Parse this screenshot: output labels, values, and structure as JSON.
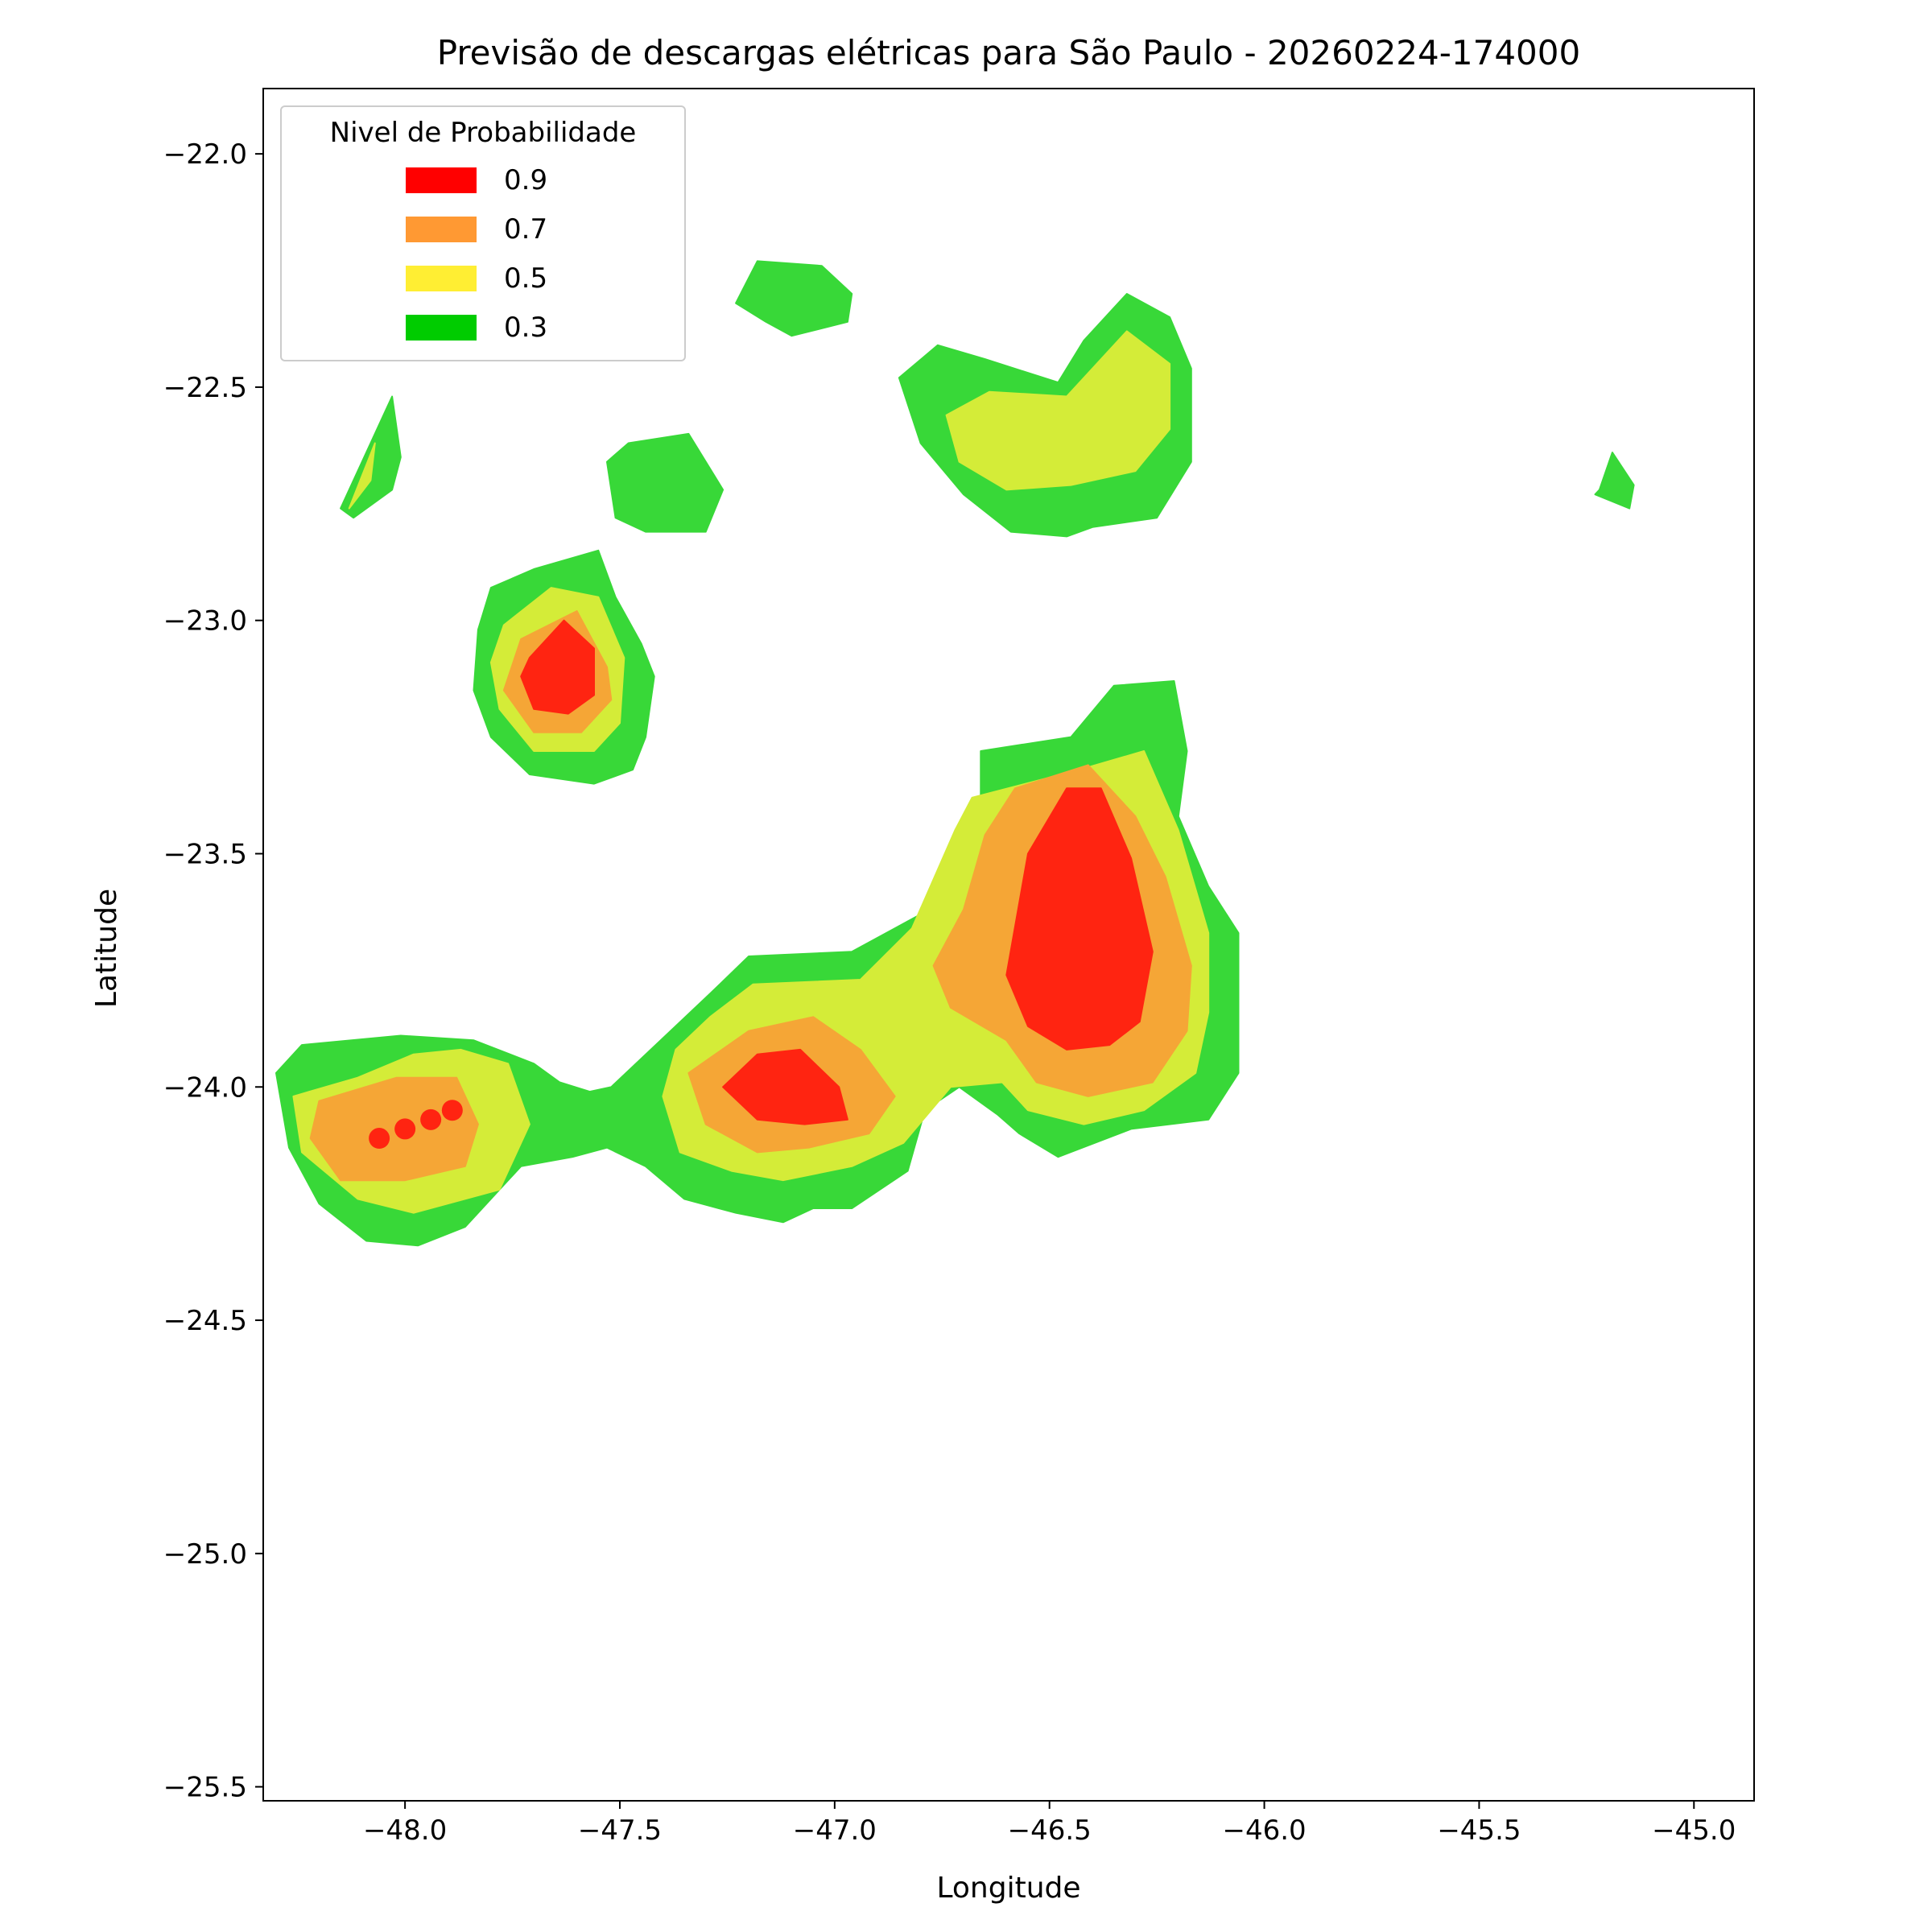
{
  "chart_data": {
    "type": "heatmap",
    "title": "Previsão de descargas elétricas para São Paulo - 20260224-174000",
    "xlabel": "Longitude",
    "ylabel": "Latitude",
    "xlim": [
      -48.33,
      -44.86
    ],
    "ylim": [
      -25.53,
      -21.86
    ],
    "xticks": [
      -48.0,
      -47.5,
      -47.0,
      -46.5,
      -46.0,
      -45.5,
      -45.0
    ],
    "yticks": [
      -22.0,
      -22.5,
      -23.0,
      -23.5,
      -24.0,
      -24.5,
      -25.0,
      -25.5
    ],
    "xtick_labels": [
      "−48.0",
      "−47.5",
      "−47.0",
      "−46.5",
      "−46.0",
      "−45.5",
      "−45.0"
    ],
    "ytick_labels": [
      "−22.0",
      "−22.5",
      "−23.0",
      "−23.5",
      "−24.0",
      "−24.5",
      "−25.0",
      "−25.5"
    ],
    "legend": {
      "title": "Nivel de Probabilidade",
      "placement": "upper-left",
      "entries": [
        {
          "label": "0.9",
          "color": "#ff0000"
        },
        {
          "label": "0.7",
          "color": "#ff9933"
        },
        {
          "label": "0.5",
          "color": "#ffee33"
        },
        {
          "label": "0.3",
          "color": "#00cc00"
        }
      ]
    },
    "level_colors": {
      "0.3": "#38d838",
      "0.5": "#d4ec38",
      "0.7": "#f5a636",
      "0.9": "#ff2411"
    },
    "contours": [
      {
        "level": 0.3,
        "polygons": [
          [
            [
              -47.52,
              -24.0
            ],
            [
              -47.29,
              -23.8
            ],
            [
              -47.2,
              -23.72
            ],
            [
              -46.96,
              -23.71
            ],
            [
              -46.86,
              -23.66
            ],
            [
              -46.78,
              -23.62
            ],
            [
              -46.73,
              -23.57
            ],
            [
              -46.72,
              -23.46
            ],
            [
              -46.66,
              -23.42
            ],
            [
              -46.66,
              -23.28
            ],
            [
              -46.45,
              -23.25
            ],
            [
              -46.35,
              -23.14
            ],
            [
              -46.21,
              -23.13
            ],
            [
              -46.18,
              -23.28
            ],
            [
              -46.2,
              -23.42
            ],
            [
              -46.13,
              -23.57
            ],
            [
              -46.06,
              -23.67
            ],
            [
              -46.06,
              -23.97
            ],
            [
              -46.13,
              -24.07
            ],
            [
              -46.31,
              -24.09
            ],
            [
              -46.48,
              -24.15
            ],
            [
              -46.57,
              -24.1
            ],
            [
              -46.62,
              -24.06
            ],
            [
              -46.71,
              -24.0
            ],
            [
              -46.79,
              -24.05
            ],
            [
              -46.83,
              -24.18
            ],
            [
              -46.96,
              -24.26
            ],
            [
              -47.05,
              -24.26
            ],
            [
              -47.12,
              -24.29
            ],
            [
              -47.23,
              -24.27
            ],
            [
              -47.35,
              -24.24
            ],
            [
              -47.44,
              -24.17
            ],
            [
              -47.53,
              -24.13
            ],
            [
              -47.61,
              -24.15
            ],
            [
              -47.73,
              -24.17
            ],
            [
              -47.86,
              -24.3
            ],
            [
              -47.97,
              -24.34
            ],
            [
              -48.09,
              -24.33
            ],
            [
              -48.2,
              -24.25
            ],
            [
              -48.27,
              -24.13
            ],
            [
              -48.3,
              -23.97
            ],
            [
              -48.24,
              -23.91
            ],
            [
              -48.01,
              -23.89
            ],
            [
              -47.84,
              -23.9
            ],
            [
              -47.7,
              -23.95
            ],
            [
              -47.64,
              -23.99
            ],
            [
              -47.57,
              -24.01
            ]
          ],
          [
            [
              -47.83,
              -23.02
            ],
            [
              -47.8,
              -22.93
            ],
            [
              -47.7,
              -22.89
            ],
            [
              -47.55,
              -22.85
            ],
            [
              -47.51,
              -22.95
            ],
            [
              -47.45,
              -23.05
            ],
            [
              -47.42,
              -23.12
            ],
            [
              -47.44,
              -23.25
            ],
            [
              -47.47,
              -23.32
            ],
            [
              -47.56,
              -23.35
            ],
            [
              -47.71,
              -23.33
            ],
            [
              -47.8,
              -23.25
            ],
            [
              -47.84,
              -23.15
            ]
          ],
          [
            [
              -47.26,
              -22.72
            ],
            [
              -47.34,
              -22.6
            ],
            [
              -47.48,
              -22.62
            ],
            [
              -47.53,
              -22.66
            ],
            [
              -47.51,
              -22.78
            ],
            [
              -47.44,
              -22.81
            ],
            [
              -47.3,
              -22.81
            ]
          ],
          [
            [
              -46.85,
              -22.48
            ],
            [
              -46.76,
              -22.41
            ],
            [
              -46.65,
              -22.44
            ],
            [
              -46.48,
              -22.49
            ],
            [
              -46.42,
              -22.4
            ],
            [
              -46.32,
              -22.3
            ],
            [
              -46.22,
              -22.35
            ],
            [
              -46.17,
              -22.46
            ],
            [
              -46.17,
              -22.66
            ],
            [
              -46.25,
              -22.78
            ],
            [
              -46.4,
              -22.8
            ],
            [
              -46.46,
              -22.82
            ],
            [
              -46.59,
              -22.81
            ],
            [
              -46.7,
              -22.73
            ],
            [
              -46.8,
              -22.62
            ]
          ],
          [
            [
              -47.23,
              -22.32
            ],
            [
              -47.18,
              -22.23
            ],
            [
              -47.03,
              -22.24
            ],
            [
              -46.96,
              -22.3
            ],
            [
              -46.97,
              -22.36
            ],
            [
              -47.1,
              -22.39
            ],
            [
              -47.16,
              -22.36
            ]
          ],
          [
            [
              -48.15,
              -22.76
            ],
            [
              -48.03,
              -22.52
            ],
            [
              -48.01,
              -22.65
            ],
            [
              -48.03,
              -22.72
            ],
            [
              -48.12,
              -22.78
            ]
          ],
          [
            [
              -45.22,
              -22.72
            ],
            [
              -45.19,
              -22.64
            ],
            [
              -45.14,
              -22.71
            ],
            [
              -45.15,
              -22.76
            ],
            [
              -45.23,
              -22.73
            ]
          ]
        ]
      },
      {
        "level": 0.5,
        "polygons": [
          [
            [
              -47.29,
              -23.85
            ],
            [
              -47.19,
              -23.78
            ],
            [
              -46.94,
              -23.77
            ],
            [
              -46.82,
              -23.66
            ],
            [
              -46.72,
              -23.45
            ],
            [
              -46.68,
              -23.38
            ],
            [
              -46.43,
              -23.32
            ],
            [
              -46.28,
              -23.28
            ],
            [
              -46.2,
              -23.45
            ],
            [
              -46.13,
              -23.67
            ],
            [
              -46.13,
              -23.84
            ],
            [
              -46.16,
              -23.97
            ],
            [
              -46.28,
              -24.05
            ],
            [
              -46.42,
              -24.08
            ],
            [
              -46.55,
              -24.05
            ],
            [
              -46.61,
              -23.99
            ],
            [
              -46.73,
              -24.0
            ],
            [
              -46.84,
              -24.12
            ],
            [
              -46.96,
              -24.17
            ],
            [
              -47.12,
              -24.2
            ],
            [
              -47.24,
              -24.18
            ],
            [
              -47.36,
              -24.14
            ],
            [
              -47.4,
              -24.02
            ],
            [
              -47.37,
              -23.92
            ]
          ],
          [
            [
              -47.77,
              -23.01
            ],
            [
              -47.66,
              -22.93
            ],
            [
              -47.55,
              -22.95
            ],
            [
              -47.49,
              -23.08
            ],
            [
              -47.5,
              -23.22
            ],
            [
              -47.56,
              -23.28
            ],
            [
              -47.7,
              -23.28
            ],
            [
              -47.78,
              -23.19
            ],
            [
              -47.8,
              -23.09
            ]
          ],
          [
            [
              -48.11,
              -23.98
            ],
            [
              -47.98,
              -23.93
            ],
            [
              -47.87,
              -23.92
            ],
            [
              -47.76,
              -23.95
            ],
            [
              -47.71,
              -24.08
            ],
            [
              -47.78,
              -24.22
            ],
            [
              -47.98,
              -24.27
            ],
            [
              -48.11,
              -24.24
            ],
            [
              -48.24,
              -24.14
            ],
            [
              -48.26,
              -24.02
            ]
          ],
          [
            [
              -46.74,
              -22.56
            ],
            [
              -46.64,
              -22.51
            ],
            [
              -46.46,
              -22.52
            ],
            [
              -46.32,
              -22.38
            ],
            [
              -46.22,
              -22.45
            ],
            [
              -46.22,
              -22.59
            ],
            [
              -46.3,
              -22.68
            ],
            [
              -46.45,
              -22.71
            ],
            [
              -46.6,
              -22.72
            ],
            [
              -46.71,
              -22.66
            ]
          ],
          [
            [
              -48.07,
              -22.62
            ],
            [
              -48.13,
              -22.76
            ],
            [
              -48.08,
              -22.7
            ]
          ]
        ]
      },
      {
        "level": 0.7,
        "polygons": [
          [
            [
              -46.58,
              -23.36
            ],
            [
              -46.41,
              -23.31
            ],
            [
              -46.3,
              -23.42
            ],
            [
              -46.23,
              -23.55
            ],
            [
              -46.17,
              -23.74
            ],
            [
              -46.18,
              -23.88
            ],
            [
              -46.26,
              -23.99
            ],
            [
              -46.41,
              -24.02
            ],
            [
              -46.53,
              -23.99
            ],
            [
              -46.6,
              -23.9
            ],
            [
              -46.73,
              -23.83
            ],
            [
              -46.77,
              -23.74
            ],
            [
              -46.7,
              -23.62
            ],
            [
              -46.65,
              -23.46
            ]
          ],
          [
            [
              -47.2,
              -23.88
            ],
            [
              -47.05,
              -23.85
            ],
            [
              -46.94,
              -23.92
            ],
            [
              -46.86,
              -24.02
            ],
            [
              -46.92,
              -24.1
            ],
            [
              -47.06,
              -24.13
            ],
            [
              -47.18,
              -24.14
            ],
            [
              -47.3,
              -24.08
            ],
            [
              -47.34,
              -23.97
            ]
          ],
          [
            [
              -47.73,
              -23.04
            ],
            [
              -47.6,
              -22.98
            ],
            [
              -47.53,
              -23.1
            ],
            [
              -47.52,
              -23.17
            ],
            [
              -47.59,
              -23.24
            ],
            [
              -47.7,
              -23.24
            ],
            [
              -47.77,
              -23.15
            ]
          ],
          [
            [
              -48.2,
              -24.03
            ],
            [
              -48.02,
              -23.98
            ],
            [
              -47.88,
              -23.98
            ],
            [
              -47.83,
              -24.08
            ],
            [
              -47.86,
              -24.17
            ],
            [
              -48.0,
              -24.2
            ],
            [
              -48.15,
              -24.2
            ],
            [
              -48.22,
              -24.11
            ]
          ]
        ]
      },
      {
        "level": 0.9,
        "polygons": [
          [
            [
              -46.55,
              -23.5
            ],
            [
              -46.46,
              -23.36
            ],
            [
              -46.38,
              -23.36
            ],
            [
              -46.31,
              -23.51
            ],
            [
              -46.26,
              -23.71
            ],
            [
              -46.29,
              -23.86
            ],
            [
              -46.36,
              -23.91
            ],
            [
              -46.46,
              -23.92
            ],
            [
              -46.55,
              -23.87
            ],
            [
              -46.6,
              -23.76
            ]
          ],
          [
            [
              -47.18,
              -23.93
            ],
            [
              -47.08,
              -23.92
            ],
            [
              -46.99,
              -24.0
            ],
            [
              -46.97,
              -24.07
            ],
            [
              -47.07,
              -24.08
            ],
            [
              -47.18,
              -24.07
            ],
            [
              -47.26,
              -24.0
            ]
          ],
          [
            [
              -47.71,
              -23.08
            ],
            [
              -47.63,
              -23.0
            ],
            [
              -47.56,
              -23.06
            ],
            [
              -47.56,
              -23.16
            ],
            [
              -47.62,
              -23.2
            ],
            [
              -47.7,
              -23.19
            ],
            [
              -47.73,
              -23.12
            ]
          ]
        ]
      }
    ],
    "points": [
      {
        "lon": -48.06,
        "lat": -24.11,
        "value": 0.9
      },
      {
        "lon": -48.0,
        "lat": -24.09,
        "value": 0.9
      },
      {
        "lon": -47.94,
        "lat": -24.07,
        "value": 0.9
      },
      {
        "lon": -47.89,
        "lat": -24.05,
        "value": 0.9
      }
    ]
  }
}
